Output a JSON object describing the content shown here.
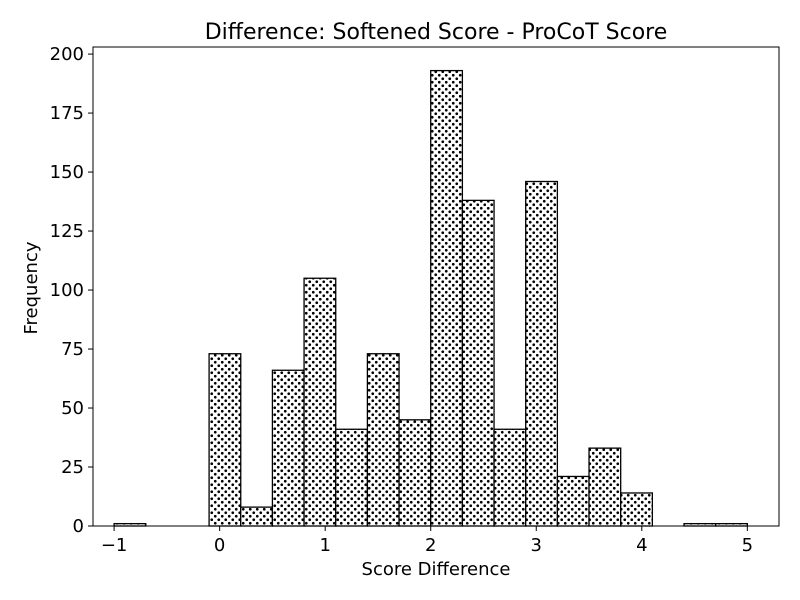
{
  "chart_data": {
    "type": "bar",
    "title": "Difference: Softened Score - ProCoT Score",
    "xlabel": "Score Difference",
    "ylabel": "Frequency",
    "xlim": [
      -1.2,
      5.3
    ],
    "ylim": [
      0,
      203
    ],
    "x_ticks": [
      -1,
      0,
      1,
      2,
      3,
      4,
      5
    ],
    "x_tick_labels": [
      "−1",
      "0",
      "1",
      "2",
      "3",
      "4",
      "5"
    ],
    "y_ticks": [
      0,
      25,
      50,
      75,
      100,
      125,
      150,
      175,
      200
    ],
    "y_tick_labels": [
      "0",
      "25",
      "50",
      "75",
      "100",
      "125",
      "150",
      "175",
      "200"
    ],
    "bin_width": 0.3,
    "bins": [
      {
        "left": -1.0,
        "count": 1
      },
      {
        "left": -0.1,
        "count": 73
      },
      {
        "left": 0.2,
        "count": 8
      },
      {
        "left": 0.5,
        "count": 66
      },
      {
        "left": 0.8,
        "count": 105
      },
      {
        "left": 1.1,
        "count": 41
      },
      {
        "left": 1.4,
        "count": 73
      },
      {
        "left": 1.7,
        "count": 45
      },
      {
        "left": 2.0,
        "count": 193
      },
      {
        "left": 2.3,
        "count": 138
      },
      {
        "left": 2.6,
        "count": 41
      },
      {
        "left": 2.9,
        "count": 146
      },
      {
        "left": 3.2,
        "count": 21
      },
      {
        "left": 3.5,
        "count": 33
      },
      {
        "left": 3.8,
        "count": 14
      },
      {
        "left": 4.4,
        "count": 1
      },
      {
        "left": 4.7,
        "count": 1
      }
    ],
    "bar_fill": "#ffffff",
    "bar_pattern": "dots",
    "bar_edge_color": "#000000",
    "grid": false,
    "legend": "none"
  }
}
